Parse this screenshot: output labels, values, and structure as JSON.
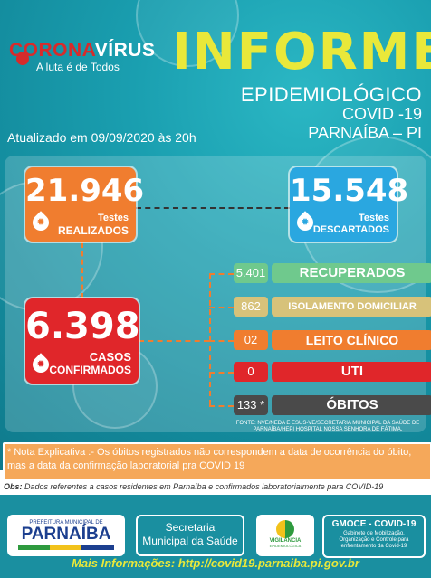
{
  "header": {
    "brand_part1": "CORONA",
    "brand_part2": "VÍRUS",
    "brand_tagline": "A luta é de Todos",
    "title": "INFORME",
    "subtitle": "EPIDEMIOLÓGICO",
    "disease": "COVID -19",
    "city": "PARNAÍBA – PI",
    "updated": "Atualizado em 09/09/2020 às 20h"
  },
  "tests_done": {
    "value": "21.946",
    "line1": "Testes",
    "line2": "REALIZADOS",
    "color": "#f07d2f"
  },
  "tests_discarded": {
    "value": "15.548",
    "line1": "Testes",
    "line2": "DESCARTADOS",
    "color": "#2aa7e0"
  },
  "confirmed": {
    "value": "6.398",
    "line1": "CASOS",
    "line2": "CONFIRMADOS",
    "color": "#e0262a"
  },
  "breakdown": [
    {
      "value": "5.401",
      "label": "RECUPERADOS",
      "color": "#6fc98d"
    },
    {
      "value": "862",
      "label": "ISOLAMENTO DOMICILIAR",
      "color": "#d7c27a"
    },
    {
      "value": "02",
      "label": "LEITO CLÍNICO",
      "color": "#f07d2f"
    },
    {
      "value": "0",
      "label": "UTI",
      "color": "#e0262a"
    },
    {
      "value": "133 *",
      "label": "ÓBITOS",
      "color": "#4a4a4a"
    }
  ],
  "source": "FONTE: NVE/NEDA E ESUS-VE/SECRETARIA MUNICIPAL DA SAÚDE DE PARNAÍBA/HEPI HOSPITAL NOSSA SENHORA DE FÁTIMA.",
  "note": "* Nota Explicativa :- Os óbitos registrados não correspondem a data de ocorrência do óbito, mas a data da confirmação laboratorial pra COVID 19",
  "obs_label": "Obs:",
  "obs_text": "Dados referentes a casos residentes em Parnaíba e confirmados laboratorialmente para COVID-19",
  "footer": {
    "prefeitura_top": "PREFEITURA MUNICIPAL DE",
    "prefeitura_name": "PARNAÍBA",
    "secretaria": "Secretaria Municipal da Saúde",
    "vigilancia": "VIGILÂNCIA",
    "vigilancia_sub": "EPIDEMIOLÓGICA",
    "gmoce_title": "GMOCE - COVID-19",
    "gmoce_text": "Gabinete de Mobilização, Organização e Controle para enfrentamento da Covid-19",
    "more_info": "Mais Informações: http://covid19.parnaiba.pi.gov.br"
  }
}
